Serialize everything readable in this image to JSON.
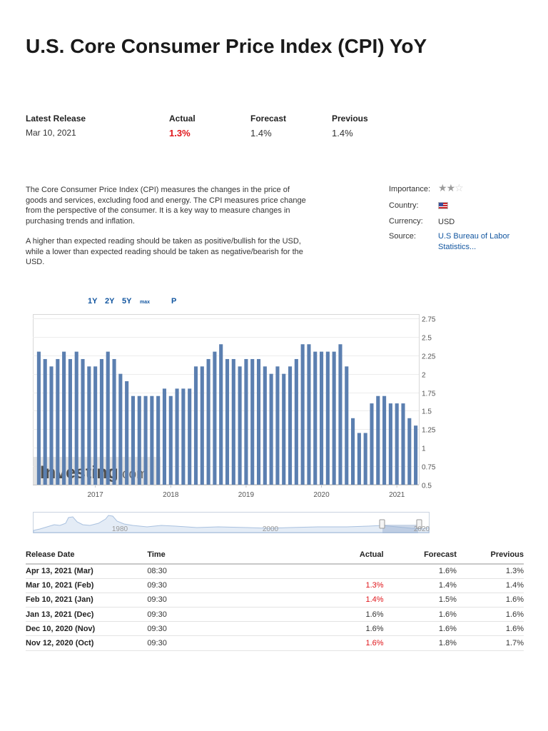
{
  "page": {
    "title": "U.S. Core Consumer Price Index (CPI) YoY"
  },
  "latest_release": {
    "headers": {
      "release": "Latest Release",
      "actual": "Actual",
      "forecast": "Forecast",
      "previous": "Previous"
    },
    "date": "Mar 10, 2021",
    "actual": "1.3%",
    "forecast": "1.4%",
    "previous": "1.4%",
    "actual_color": "#e0161b"
  },
  "description": {
    "p1": "The Core Consumer Price Index (CPI) measures the changes in the price of goods and services, excluding food and energy. The CPI measures price change from the perspective of the consumer. It is a key way to measure changes in purchasing trends and inflation.",
    "p2": "A higher than expected reading should be taken as positive/bullish for the USD, while a lower than expected reading should be taken as negative/bearish for the USD."
  },
  "info": {
    "importance_label": "Importance:",
    "importance_stars": 2,
    "importance_max": 3,
    "country_label": "Country:",
    "country_flag_icon": "us-flag-icon",
    "currency_label": "Currency:",
    "currency": "USD",
    "source_label": "Source:",
    "source_line1": "U.S Bureau of Labor",
    "source_line2": "Statistics..."
  },
  "periods": {
    "y1": "1Y",
    "y2": "2Y",
    "y5": "5Y",
    "max": "max",
    "p": "P"
  },
  "watermark": {
    "brand": "Investing",
    "suffix": ".com"
  },
  "chart_data": {
    "type": "bar",
    "unit": "%",
    "ylim": [
      0.5,
      2.75
    ],
    "yticks": [
      0.5,
      0.75,
      1,
      1.25,
      1.5,
      1.75,
      2,
      2.25,
      2.5,
      2.75
    ],
    "ytick_labels": [
      "0.5",
      "0.75",
      "1",
      "1.25",
      "1.5",
      "1.75",
      "2",
      "2.25",
      "2.5",
      "2.75"
    ],
    "xtick_labels": [
      "2017",
      "2018",
      "2019",
      "2020",
      "2021"
    ],
    "xtick_indices": [
      9,
      21,
      33,
      45,
      57
    ],
    "axis_side": "right",
    "grid": true,
    "bar_color": "#5b7fb0",
    "values": [
      2.3,
      2.2,
      2.1,
      2.2,
      2.3,
      2.2,
      2.3,
      2.2,
      2.1,
      2.1,
      2.2,
      2.3,
      2.2,
      2.0,
      1.9,
      1.7,
      1.7,
      1.7,
      1.7,
      1.7,
      1.8,
      1.7,
      1.8,
      1.8,
      1.8,
      2.1,
      2.1,
      2.2,
      2.3,
      2.4,
      2.2,
      2.2,
      2.1,
      2.2,
      2.2,
      2.2,
      2.1,
      2.0,
      2.1,
      2.0,
      2.1,
      2.2,
      2.4,
      2.4,
      2.3,
      2.3,
      2.3,
      2.3,
      2.4,
      2.1,
      1.4,
      1.2,
      1.2,
      1.6,
      1.7,
      1.7,
      1.6,
      1.6,
      1.6,
      1.4,
      1.3
    ]
  },
  "navigator": {
    "labels": [
      "1980",
      "2000",
      "2020"
    ]
  },
  "history_table": {
    "headers": {
      "date": "Release Date",
      "time": "Time",
      "actual": "Actual",
      "forecast": "Forecast",
      "previous": "Previous"
    },
    "rows": [
      {
        "date": "Apr 13, 2021 (Mar)",
        "time": "08:30",
        "actual": "",
        "forecast": "1.6%",
        "previous": "1.3%",
        "actual_red": false
      },
      {
        "date": "Mar 10, 2021 (Feb)",
        "time": "09:30",
        "actual": "1.3%",
        "forecast": "1.4%",
        "previous": "1.4%",
        "actual_red": true
      },
      {
        "date": "Feb 10, 2021 (Jan)",
        "time": "09:30",
        "actual": "1.4%",
        "forecast": "1.5%",
        "previous": "1.6%",
        "actual_red": true
      },
      {
        "date": "Jan 13, 2021 (Dec)",
        "time": "09:30",
        "actual": "1.6%",
        "forecast": "1.6%",
        "previous": "1.6%",
        "actual_red": false
      },
      {
        "date": "Dec 10, 2020 (Nov)",
        "time": "09:30",
        "actual": "1.6%",
        "forecast": "1.6%",
        "previous": "1.6%",
        "actual_red": false
      },
      {
        "date": "Nov 12, 2020 (Oct)",
        "time": "09:30",
        "actual": "1.6%",
        "forecast": "1.8%",
        "previous": "1.7%",
        "actual_red": true
      }
    ]
  }
}
